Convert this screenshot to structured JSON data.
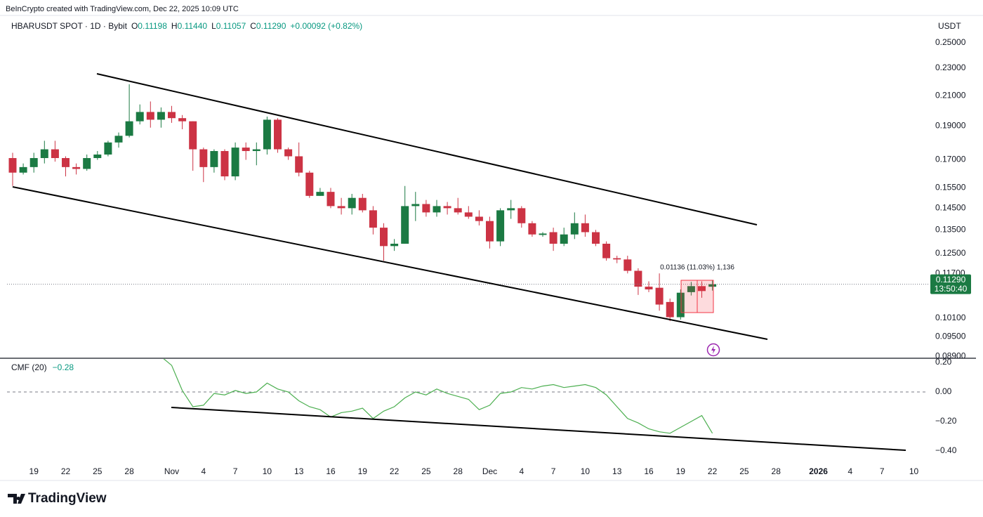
{
  "watermark": "BeInCrypto created with TradingView.com, Dec 22, 2025 10:09 UTC",
  "header": {
    "symbol": "HBARUSDT SPOT · 1D · Bybit",
    "ohlc": [
      {
        "label": "O",
        "value": "0.11198"
      },
      {
        "label": "H",
        "value": "0.11440"
      },
      {
        "label": "L",
        "value": "0.11057"
      },
      {
        "label": "C",
        "value": "0.11290"
      }
    ],
    "change": "+0.00092 (+0.82%)"
  },
  "footer": {
    "logo": "TradingView"
  },
  "chart_data": [
    {
      "type": "candlestick",
      "currency": "USDT",
      "log": true,
      "grid": false,
      "up_color": "#1b7a43",
      "down_color": "#cc3344",
      "categories": [
        null,
        null,
        "19",
        null,
        null,
        "22",
        null,
        null,
        "25",
        null,
        null,
        "28",
        null,
        null,
        null,
        "Nov",
        null,
        null,
        "4",
        null,
        null,
        "7",
        null,
        null,
        "10",
        null,
        null,
        "13",
        null,
        null,
        "16",
        null,
        null,
        "19",
        null,
        null,
        "22",
        null,
        null,
        "25",
        null,
        null,
        "28",
        null,
        null,
        "Dec",
        null,
        null,
        "4",
        null,
        null,
        "7",
        null,
        null,
        "10",
        null,
        null,
        "13",
        null,
        null,
        "16",
        null,
        null,
        "19",
        null,
        null,
        "22",
        null,
        null,
        "25",
        null,
        null,
        "28",
        null,
        null,
        null,
        "2026",
        null,
        null,
        "4",
        null,
        null,
        "7",
        null,
        null,
        "10"
      ],
      "open": [
        0.171,
        0.163,
        0.166,
        0.171,
        0.176,
        0.171,
        0.166,
        0.165,
        0.171,
        0.173,
        0.18,
        0.184,
        0.193,
        0.199,
        0.194,
        0.199,
        0.195,
        0.193,
        0.176,
        0.166,
        0.175,
        0.161,
        0.177,
        0.175,
        0.176,
        0.194,
        0.176,
        0.172,
        0.163,
        0.151,
        0.153,
        0.146,
        0.145,
        0.15,
        0.144,
        0.136,
        0.128,
        0.129,
        0.146,
        0.147,
        0.143,
        0.146,
        0.145,
        0.143,
        0.141,
        0.139,
        0.13,
        0.144,
        0.145,
        0.138,
        0.1328,
        0.134,
        0.129,
        0.133,
        0.138,
        0.134,
        0.129,
        0.123,
        0.1225,
        0.118,
        0.112,
        0.1116,
        0.1065,
        0.1013,
        0.11,
        0.1122,
        0.11198,
        null,
        null,
        null,
        null,
        null,
        null,
        null,
        null,
        null,
        null,
        null,
        null,
        null,
        null,
        null,
        null,
        null,
        null,
        null
      ],
      "high": [
        0.174,
        0.168,
        0.174,
        0.181,
        0.181,
        0.172,
        0.168,
        0.173,
        0.175,
        0.181,
        0.186,
        0.218,
        0.204,
        0.206,
        0.202,
        0.203,
        0.197,
        0.193,
        0.177,
        0.176,
        0.176,
        0.18,
        0.18,
        0.18,
        0.196,
        0.195,
        0.177,
        0.18,
        0.164,
        0.155,
        0.155,
        0.15,
        0.152,
        0.152,
        0.146,
        0.138,
        0.131,
        0.156,
        0.153,
        0.149,
        0.149,
        0.148,
        0.15,
        0.146,
        0.144,
        0.141,
        0.145,
        0.149,
        0.146,
        0.139,
        0.134,
        0.136,
        0.136,
        0.143,
        0.142,
        0.135,
        0.13,
        0.124,
        0.124,
        0.119,
        0.114,
        0.117,
        0.1077,
        0.111,
        0.1138,
        0.114,
        0.1144,
        null,
        null,
        null,
        null,
        null,
        null,
        null,
        null,
        null,
        null,
        null,
        null,
        null,
        null,
        null,
        null,
        null,
        null,
        null
      ],
      "low": [
        0.156,
        0.162,
        0.163,
        0.168,
        0.169,
        0.161,
        0.162,
        0.164,
        0.17,
        0.172,
        0.177,
        0.183,
        0.191,
        0.189,
        0.189,
        0.192,
        0.188,
        0.164,
        0.158,
        0.163,
        0.159,
        0.159,
        0.17,
        0.167,
        0.173,
        0.174,
        0.17,
        0.161,
        0.15,
        0.151,
        0.145,
        0.142,
        0.142,
        0.143,
        0.133,
        0.122,
        0.126,
        0.129,
        0.139,
        0.141,
        0.141,
        0.142,
        0.142,
        0.14,
        0.137,
        0.127,
        0.128,
        0.14,
        0.136,
        0.132,
        0.132,
        0.126,
        0.128,
        0.131,
        0.132,
        0.128,
        0.122,
        0.121,
        0.117,
        0.109,
        0.11,
        0.1035,
        0.1,
        0.1005,
        0.1088,
        0.108,
        0.11057,
        null,
        null,
        null,
        null,
        null,
        null,
        null,
        null,
        null,
        null,
        null,
        null,
        null,
        null,
        null,
        null,
        null,
        null,
        null
      ],
      "close": [
        0.163,
        0.166,
        0.171,
        0.176,
        0.171,
        0.166,
        0.165,
        0.171,
        0.173,
        0.18,
        0.184,
        0.193,
        0.199,
        0.194,
        0.199,
        0.195,
        0.193,
        0.176,
        0.166,
        0.175,
        0.161,
        0.177,
        0.175,
        0.176,
        0.194,
        0.176,
        0.172,
        0.163,
        0.151,
        0.153,
        0.146,
        0.145,
        0.15,
        0.144,
        0.136,
        0.128,
        0.129,
        0.146,
        0.147,
        0.143,
        0.146,
        0.145,
        0.143,
        0.141,
        0.139,
        0.13,
        0.144,
        0.145,
        0.138,
        0.133,
        0.1334,
        0.129,
        0.133,
        0.138,
        0.134,
        0.129,
        0.123,
        0.1225,
        0.118,
        0.112,
        0.111,
        0.1056,
        0.1013,
        0.1098,
        0.1122,
        0.1104,
        0.1129,
        null,
        null,
        null,
        null,
        null,
        null,
        null,
        null,
        null,
        null,
        null,
        null,
        null,
        null,
        null,
        null,
        null,
        null,
        null
      ],
      "ylim": [
        0.0885,
        0.269
      ],
      "yticks": [
        {
          "value": 0.25,
          "label": "0.25000"
        },
        {
          "value": 0.23,
          "label": "0.23000"
        },
        {
          "value": 0.21,
          "label": "0.21000"
        },
        {
          "value": 0.19,
          "label": "0.19000"
        },
        {
          "value": 0.17,
          "label": "0.17000"
        },
        {
          "value": 0.155,
          "label": "0.15500"
        },
        {
          "value": 0.145,
          "label": "0.14500"
        },
        {
          "value": 0.135,
          "label": "0.13500"
        },
        {
          "value": 0.125,
          "label": "0.12500"
        },
        {
          "value": 0.117,
          "label": "0.11700"
        },
        {
          "value": 0.101,
          "label": "0.10100"
        },
        {
          "value": 0.095,
          "label": "0.09500"
        },
        {
          "value": 0.089,
          "label": "0.08900"
        }
      ],
      "last_price_label": "0.11290",
      "countdown": "13:50:40",
      "annotation": "0.01136 (11.03%) 1,136"
    },
    {
      "type": "line",
      "title": "CMF (20)",
      "value_label": "−0.28",
      "color": "#4caf50",
      "hline": 0,
      "values": [
        null,
        null,
        null,
        null,
        null,
        null,
        null,
        null,
        null,
        null,
        null,
        null,
        null,
        null,
        0.24,
        0.18,
        0.01,
        -0.1,
        -0.09,
        -0.01,
        -0.02,
        0.01,
        -0.01,
        0,
        0.06,
        0.02,
        0,
        -0.06,
        -0.1,
        -0.12,
        -0.17,
        -0.14,
        -0.13,
        -0.11,
        -0.18,
        -0.13,
        -0.1,
        -0.04,
        0,
        -0.02,
        0.02,
        -0.01,
        -0.03,
        -0.05,
        -0.12,
        -0.09,
        -0.01,
        0,
        0.03,
        0.02,
        0.04,
        0.05,
        0.03,
        0.04,
        0.05,
        0.03,
        -0.02,
        -0.1,
        -0.18,
        -0.21,
        -0.25,
        -0.27,
        -0.28,
        -0.24,
        -0.2,
        -0.16,
        -0.28,
        null,
        null,
        null,
        null,
        null,
        null,
        null,
        null,
        null,
        null,
        null,
        null,
        null,
        null,
        null,
        null,
        null,
        null,
        null
      ],
      "ylim": [
        -0.486,
        0.224
      ],
      "yticks": [
        {
          "value": 0.2,
          "label": "0.20"
        },
        {
          "value": 0,
          "label": "0.00"
        },
        {
          "value": -0.2,
          "label": "−0.20"
        },
        {
          "value": -0.4,
          "label": "−0.40"
        }
      ]
    }
  ]
}
